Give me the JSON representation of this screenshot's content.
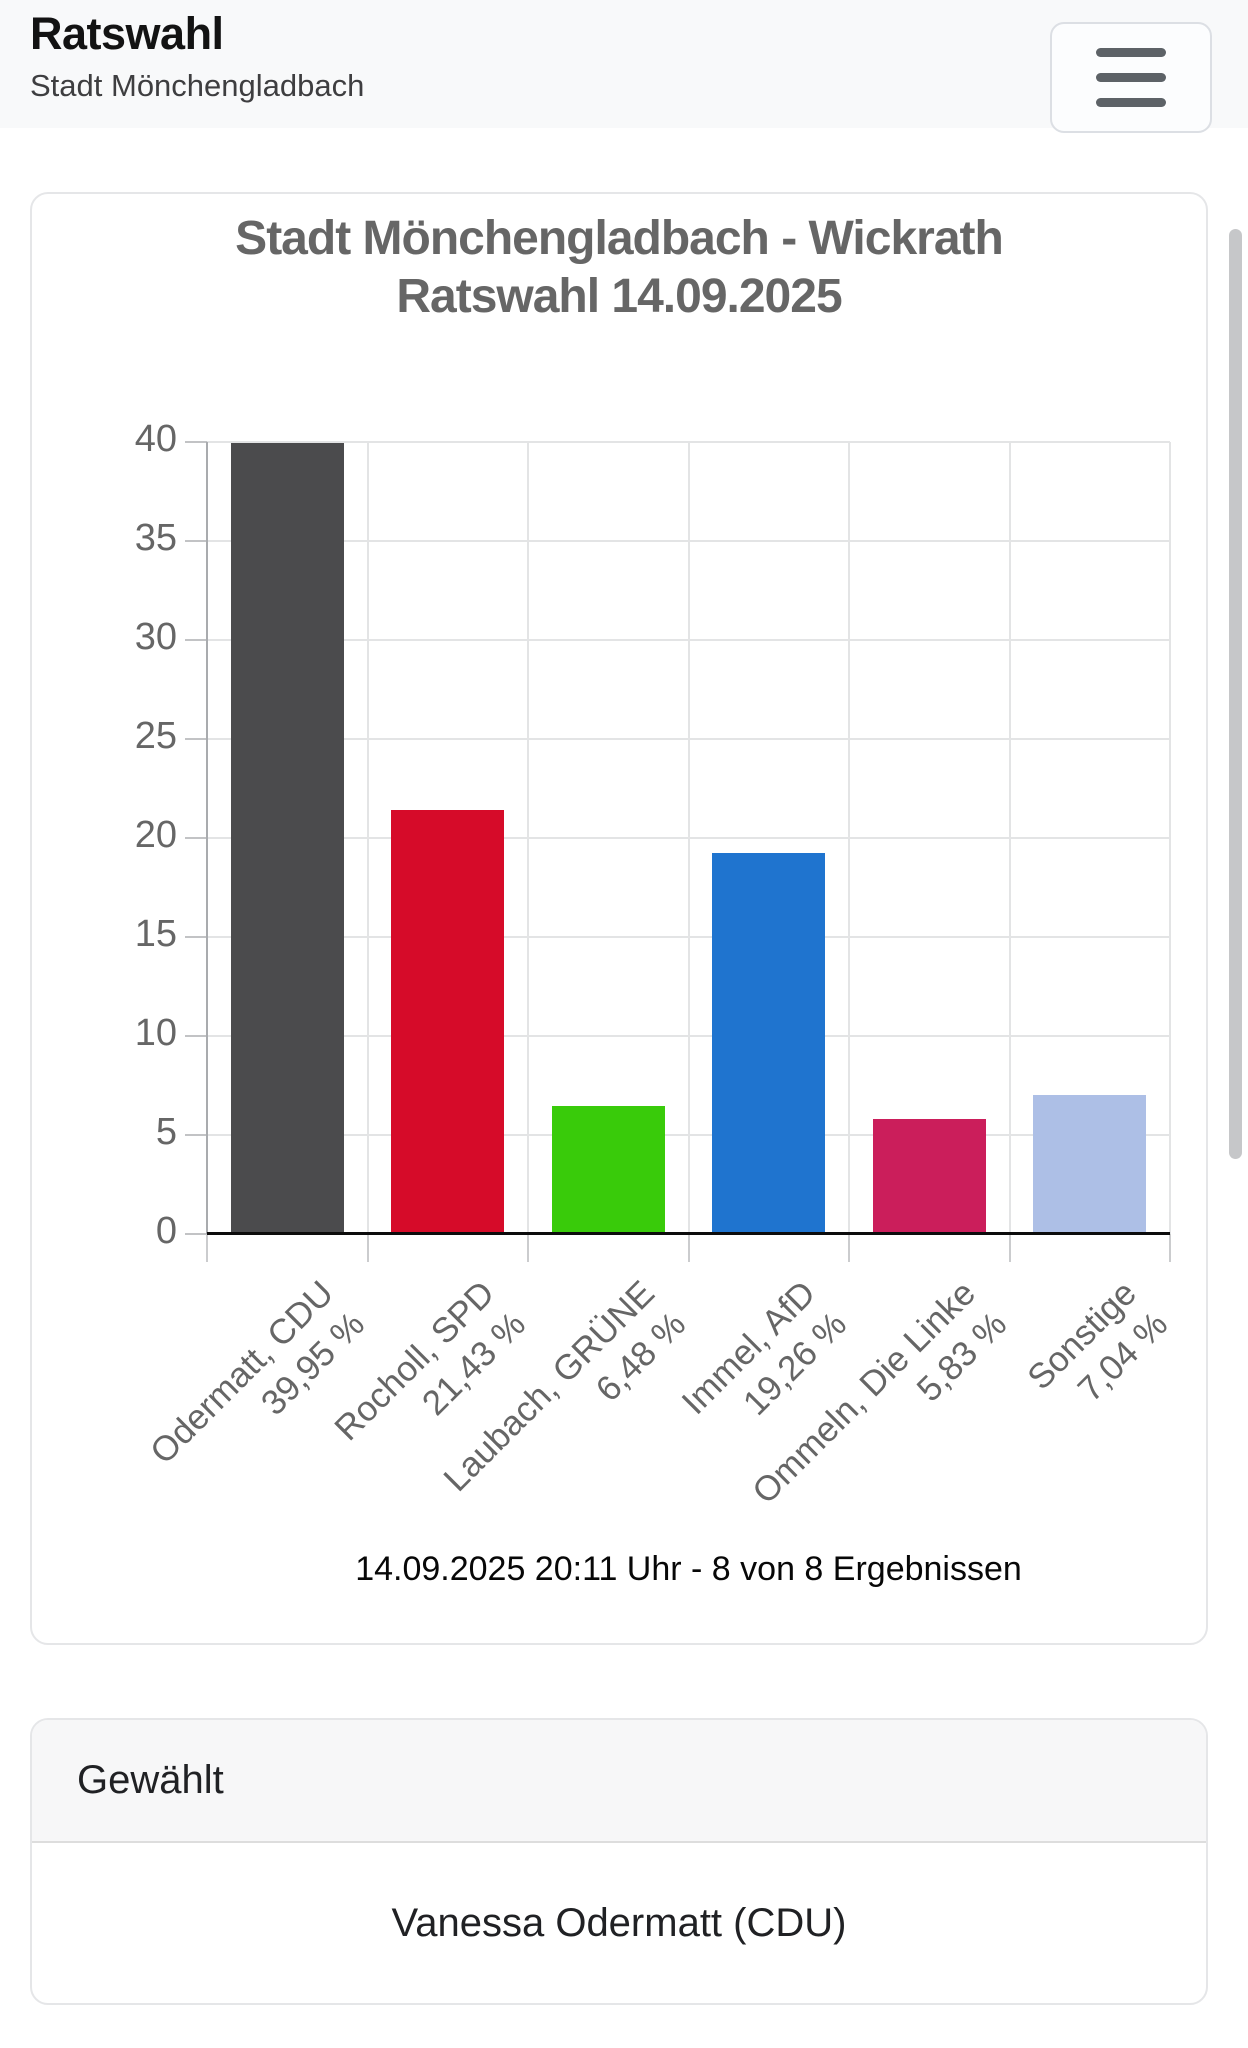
{
  "header": {
    "title": "Ratswahl",
    "subtitle": "Stadt Mönchengladbach",
    "menu_button": {
      "icon": "hamburger-menu-icon"
    }
  },
  "chart_card": {
    "footer": "14.09.2025 20:11 Uhr - 8 von 8 Ergebnissen"
  },
  "chart_data": {
    "type": "bar",
    "title": "Stadt Mönchengladbach - Wickrath Ratswahl 14.09.2025",
    "title_lines": [
      "Stadt Mönchengladbach - Wickrath",
      "Ratswahl 14.09.2025"
    ],
    "categories": [
      "Odermatt, CDU",
      "Rocholl, SPD",
      "Laubach, GRÜNE",
      "Immel, AfD",
      "Ommeln, Die Linke",
      "Sonstige"
    ],
    "values": [
      39.95,
      21.43,
      6.48,
      19.26,
      5.83,
      7.04
    ],
    "value_labels": [
      "39,95 %",
      "21,43 %",
      "6,48 %",
      "19,26 %",
      "5,83 %",
      "7,04 %"
    ],
    "bar_colors": [
      "#4b4b4d",
      "#d60b29",
      "#39cb0a",
      "#1f74cf",
      "#cb1e5b",
      "#adbfe6"
    ],
    "ylim": [
      0,
      40
    ],
    "ytick_step": 5,
    "grid": true,
    "legend": "none",
    "xlabel": "",
    "ylabel": ""
  },
  "elected_card": {
    "header": "Gewählt",
    "value": "Vanessa Odermatt (CDU)"
  }
}
